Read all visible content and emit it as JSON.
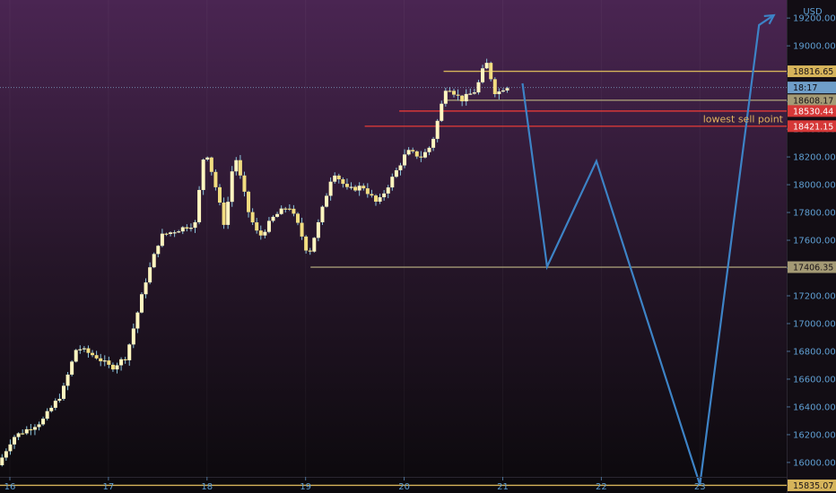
{
  "chart_data": {
    "type": "candlestick",
    "currency_label": "USD",
    "crosshair_time": "18:17",
    "x_ticks": [
      "16",
      "17",
      "18",
      "19",
      "20",
      "21",
      "22",
      "23"
    ],
    "y_ticks": [
      16000,
      16200,
      16400,
      16600,
      16800,
      17000,
      17200,
      17400,
      17600,
      17800,
      18000,
      18200,
      18400,
      18600,
      18800,
      19000,
      19200
    ],
    "y_tick_labels": [
      "16000.00",
      "16200.00",
      "16400.00",
      "16600.00",
      "16800.00",
      "17000.00",
      "17200.00",
      "17400.00",
      "17600.00",
      "17800.00",
      "18000.00",
      "18200.00",
      "18400.00",
      "18600.00",
      "18800.00",
      "19000.00",
      "19200.00"
    ],
    "ylim": [
      15780,
      19330
    ],
    "xlim": [
      15.9,
      23.88
    ],
    "colors": {
      "up": "#fff6c0",
      "down": "#f2dd80",
      "wick": "#8bc4dc",
      "projection": "#3d83c6",
      "axis_text": "#5f9fd3",
      "gold": "#d6b45a",
      "red": "#d63838",
      "olive": "#a49a75",
      "crosshair": "#7c9fc0"
    },
    "levels": [
      {
        "price": 18816.65,
        "label": "18816.65",
        "color": "#d6b45a",
        "from": 20.4
      },
      {
        "price": 18608.17,
        "label": "18608.17",
        "color": "#a49a75",
        "from": 20.4
      },
      {
        "price": 18530.44,
        "label": "18530.44",
        "color": "#d63838",
        "from": 19.95
      },
      {
        "price": 18421.15,
        "label": "18421.15",
        "color": "#d63838",
        "from": 19.6
      },
      {
        "price": 17406.35,
        "label": "17406.35",
        "color": "#a49a75",
        "from": 19.05
      },
      {
        "price": 15835.07,
        "label": "15835.07",
        "color": "#d6b45a",
        "from": 15.9
      }
    ],
    "annotation": {
      "text": "lowest sell point",
      "price": 18476
    },
    "crosshair_price": 18700,
    "anchors": [
      [
        15.9,
        15980
      ],
      [
        16.05,
        16180
      ],
      [
        16.35,
        16300
      ],
      [
        16.55,
        16500
      ],
      [
        16.7,
        16830
      ],
      [
        16.9,
        16760
      ],
      [
        17.05,
        16680
      ],
      [
        17.2,
        16760
      ],
      [
        17.4,
        17310
      ],
      [
        17.55,
        17630
      ],
      [
        17.7,
        17670
      ],
      [
        17.9,
        17720
      ],
      [
        18.0,
        18280
      ],
      [
        18.1,
        18010
      ],
      [
        18.2,
        17700
      ],
      [
        18.3,
        18230
      ],
      [
        18.45,
        17780
      ],
      [
        18.55,
        17620
      ],
      [
        18.7,
        17770
      ],
      [
        18.85,
        17850
      ],
      [
        18.95,
        17700
      ],
      [
        19.05,
        17490
      ],
      [
        19.15,
        17720
      ],
      [
        19.3,
        18100
      ],
      [
        19.45,
        17960
      ],
      [
        19.6,
        17990
      ],
      [
        19.75,
        17860
      ],
      [
        19.95,
        18110
      ],
      [
        20.05,
        18240
      ],
      [
        20.2,
        18200
      ],
      [
        20.3,
        18290
      ],
      [
        20.45,
        18720
      ],
      [
        20.6,
        18610
      ],
      [
        20.75,
        18680
      ],
      [
        20.85,
        18890
      ],
      [
        20.95,
        18650
      ],
      [
        21.05,
        18710
      ]
    ],
    "projection": [
      [
        21.2,
        18730
      ],
      [
        21.45,
        17410
      ],
      [
        21.95,
        18170
      ],
      [
        23.0,
        15840
      ],
      [
        23.6,
        19150
      ],
      [
        23.75,
        19220
      ]
    ]
  }
}
